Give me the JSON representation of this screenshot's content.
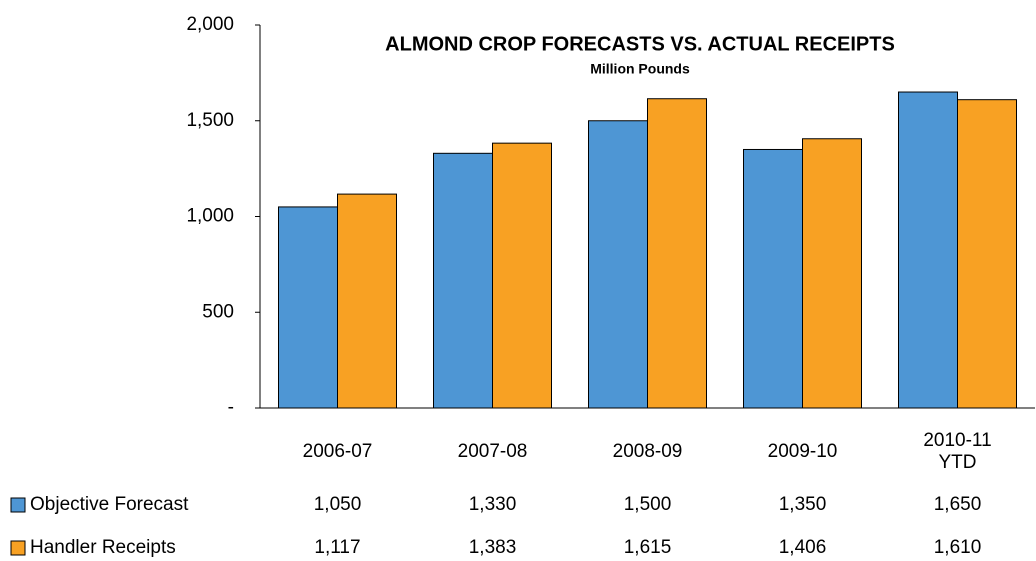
{
  "chart_data": {
    "type": "bar",
    "title": "ALMOND CROP FORECASTS VS. ACTUAL RECEIPTS",
    "subtitle": "Million Pounds",
    "categories": [
      "2006-07",
      "2007-08",
      "2008-09",
      "2009-10",
      "2010-11 YTD"
    ],
    "series": [
      {
        "name": "Objective Forecast",
        "color": "#4e96d4",
        "values": [
          1050,
          1330,
          1500,
          1350,
          1650
        ],
        "value_labels": [
          "1,050",
          "1,330",
          "1,500",
          "1,350",
          "1,650"
        ]
      },
      {
        "name": "Handler Receipts",
        "color": "#f8a123",
        "values": [
          1117,
          1383,
          1615,
          1406,
          1610
        ],
        "value_labels": [
          "1,117",
          "1,383",
          "1,615",
          "1,406",
          "1,610"
        ]
      }
    ],
    "ylim": [
      0,
      2000
    ],
    "yticks": [
      {
        "value": 0,
        "label": "-"
      },
      500,
      {
        "value": 1000,
        "label": "1,000"
      },
      {
        "value": 1500,
        "label": "1,500"
      },
      {
        "value": 2000,
        "label": "2,000"
      }
    ],
    "grid": false
  }
}
